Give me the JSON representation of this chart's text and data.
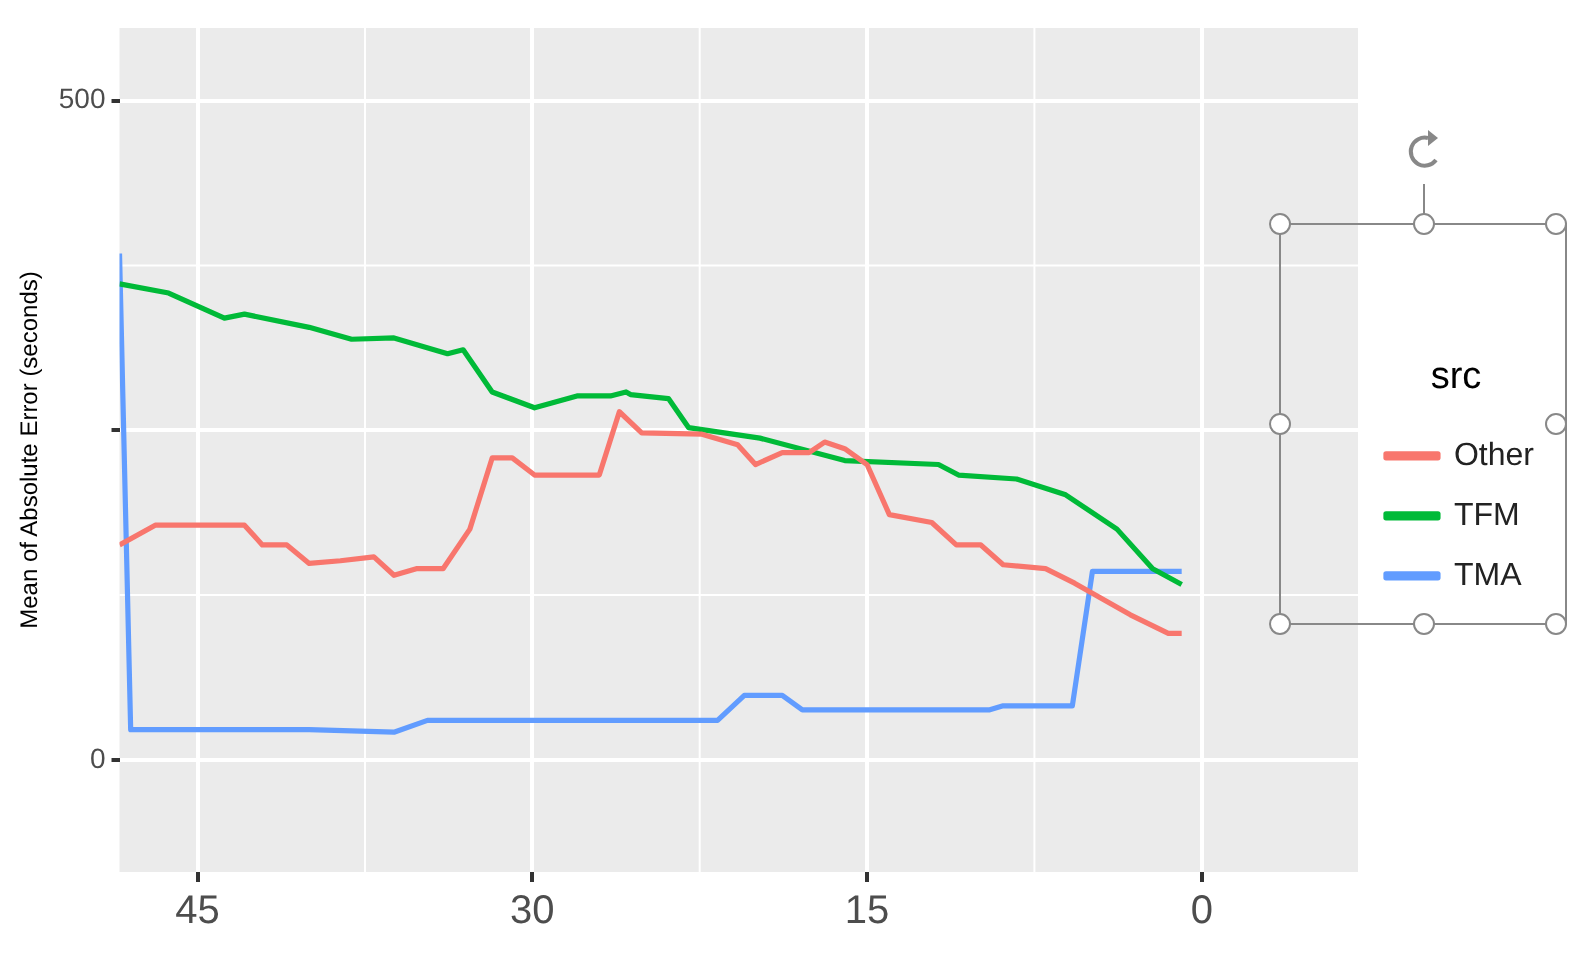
{
  "chart_data": {
    "type": "line",
    "ylabel": "Mean of Absolute Error (seconds)",
    "legend_title": "src",
    "legend": "right",
    "grid": true,
    "marker": "none",
    "line_style": "solid",
    "xlim": [
      48.5,
      -7
    ],
    "xticks": [
      45,
      30,
      15,
      0
    ],
    "ylim": [
      -85,
      555
    ],
    "yticks": [
      0,
      {
        "value": 250,
        "label": null
      },
      500
    ],
    "series": [
      {
        "name": "Other",
        "color": "#f8766d",
        "x": [
          48.5,
          46.9,
          42.9,
          42.1,
          41,
          40,
          38.6,
          37.1,
          36.2,
          35.2,
          34,
          32.8,
          31.8,
          30.9,
          29.9,
          27,
          26.1,
          25.1,
          22.4,
          20.8,
          20,
          18.8,
          17.6,
          16.9,
          16,
          15,
          14,
          12.1,
          11,
          9.9,
          8.9,
          7,
          5.7,
          3.2,
          1.5,
          0.9
        ],
        "values": [
          163,
          178,
          178,
          163,
          163,
          149,
          151,
          154,
          140,
          145,
          145,
          175,
          229,
          229,
          216,
          216,
          264,
          248,
          247,
          239,
          224,
          233,
          233,
          241,
          236,
          224,
          186,
          180,
          163,
          163,
          148,
          145,
          134,
          110,
          96,
          96
        ]
      },
      {
        "name": "TFM",
        "color": "#00ba38",
        "x": [
          48.5,
          46.3,
          43.8,
          42.9,
          40,
          38.1,
          36.2,
          33.8,
          33.1,
          31.8,
          29.9,
          28,
          26.5,
          25.8,
          25.6,
          23.9,
          23,
          19.8,
          16,
          11.8,
          10.9,
          8.3,
          6.1,
          3.8,
          2.2,
          0.9
        ],
        "values": [
          361,
          354,
          335,
          338,
          328,
          319,
          320,
          308,
          311,
          279,
          267,
          276,
          276,
          279,
          277,
          274,
          252,
          244,
          227,
          224,
          216,
          213,
          201,
          175,
          145,
          133
        ]
      },
      {
        "name": "TMA",
        "color": "#619cff",
        "x": [
          48.5,
          48,
          40,
          36.2,
          34.7,
          21.7,
          20.5,
          18.8,
          17.9,
          9.5,
          8.9,
          5.8,
          4.9,
          0.9
        ],
        "values": [
          384,
          23,
          23,
          21,
          30,
          30,
          49,
          49,
          38,
          38,
          41,
          41,
          143,
          143
        ]
      }
    ]
  }
}
